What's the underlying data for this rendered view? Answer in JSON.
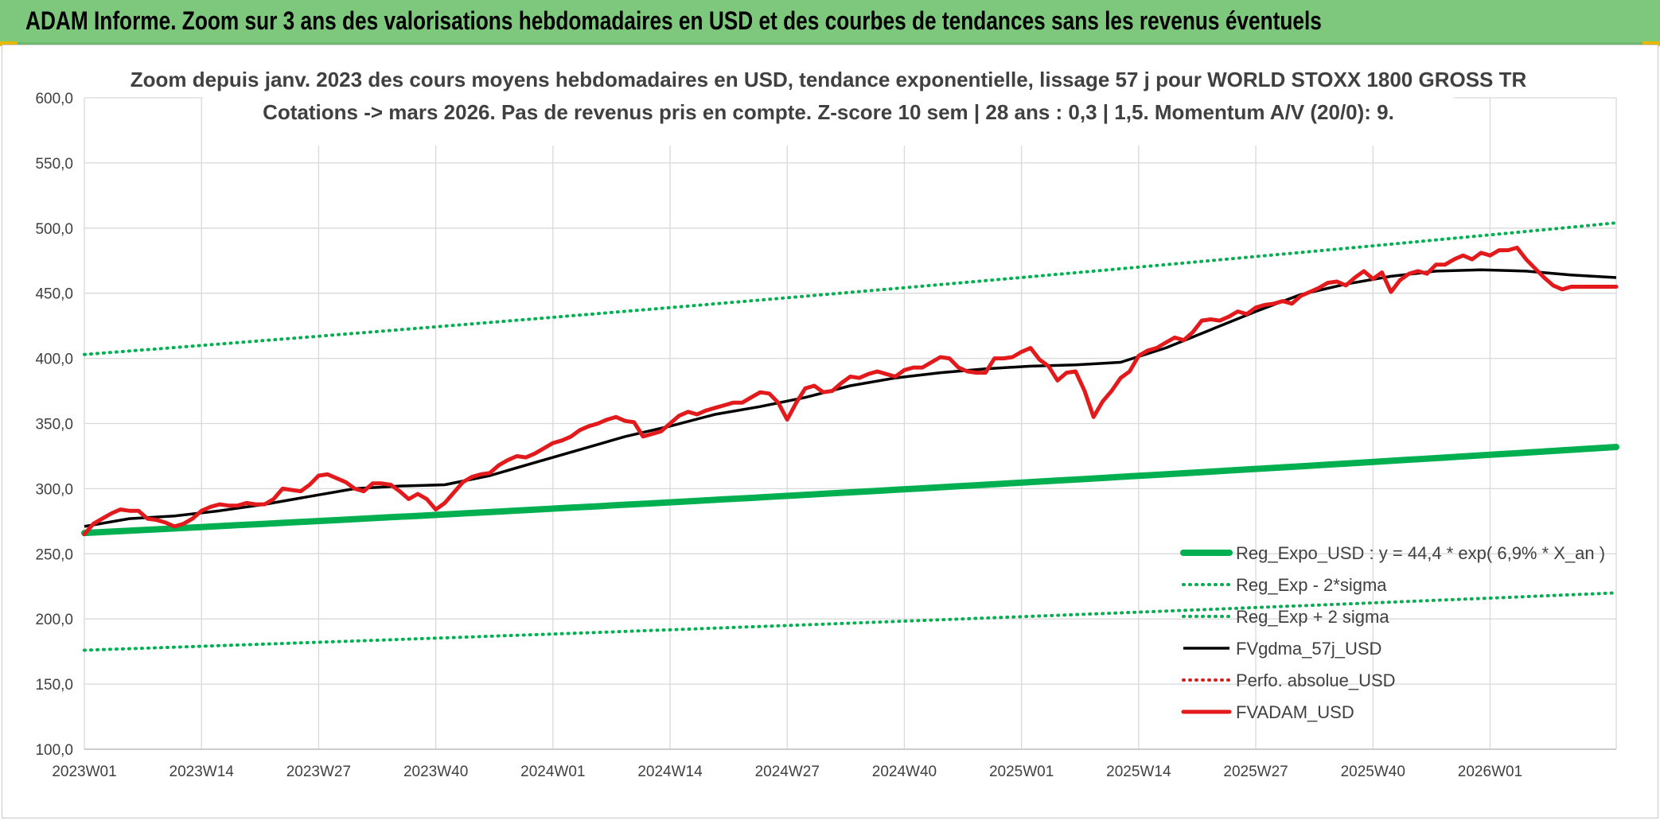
{
  "banner": {
    "title": "ADAM Informe. Zoom sur 3 ans des valorisations hebdomadaires en USD et des courbes de tendances sans les revenus éventuels"
  },
  "colors": {
    "banner_bg": "#7dc87d",
    "accent_gold": "#e6b800",
    "regression": "#00b050",
    "fvgdma": "#000000",
    "fvadam": "#e31a1c",
    "perf_absolue": "#e31a1c"
  },
  "chart_data": {
    "type": "line",
    "title": "Zoom depuis janv. 2023 des cours moyens hebdomadaires en USD, tendance exponentielle, lissage 57 j pour WORLD STOXX 1800 GROSS TR",
    "subtitle": "Cotations -> mars 2026. Pas de revenus pris en compte. Z-score 10 sem | 28 ans : 0,3 | 1,5. Momentum A/V (20/0): 9.",
    "xlabel": "",
    "ylabel": "",
    "ylim": [
      100,
      600
    ],
    "yticks": [
      "100,0",
      "150,0",
      "200,0",
      "250,0",
      "300,0",
      "350,0",
      "400,0",
      "450,0",
      "500,0",
      "550,0",
      "600,0"
    ],
    "xticks": [
      "2023W01",
      "2023W14",
      "2023W27",
      "2023W40",
      "2024W01",
      "2024W14",
      "2024W27",
      "2024W40",
      "2025W01",
      "2025W14",
      "2025W27",
      "2025W40",
      "2026W01"
    ],
    "weeks_total": 170,
    "grid": true,
    "legend_position": "bottom-right",
    "series": [
      {
        "name": "Reg_Expo_USD : y = 44,4 * exp( 6,9% *  X_an )",
        "style": "solid-thick",
        "color": "#00b050",
        "x": [
          0,
          170
        ],
        "values": [
          266,
          332
        ]
      },
      {
        "name": "Reg_Exp - 2*sigma",
        "style": "dotted",
        "color": "#00b050",
        "x": [
          0,
          170
        ],
        "values": [
          176,
          220
        ]
      },
      {
        "name": "Reg_Exp + 2 sigma",
        "style": "dotted",
        "color": "#00b050",
        "x": [
          0,
          170
        ],
        "values": [
          403,
          504
        ]
      },
      {
        "name": "FVgdma_57j_USD",
        "style": "solid",
        "color": "#000000",
        "x": [
          0,
          5,
          10,
          15,
          20,
          25,
          30,
          35,
          40,
          45,
          50,
          55,
          60,
          65,
          70,
          75,
          80,
          85,
          90,
          95,
          100,
          105,
          110,
          115,
          120,
          125,
          130,
          135,
          140,
          145,
          150,
          155,
          160,
          165,
          170
        ],
        "values": [
          271,
          277,
          279,
          283,
          288,
          294,
          300,
          302,
          303,
          310,
          320,
          330,
          340,
          348,
          357,
          363,
          370,
          379,
          385,
          389,
          392,
          394,
          395,
          397,
          408,
          422,
          436,
          449,
          457,
          463,
          467,
          468,
          467,
          464,
          462
        ]
      },
      {
        "name": "Perfo. absolue_USD",
        "style": "dotted",
        "color": "#e31a1c",
        "x": [],
        "values": []
      },
      {
        "name": "FVADAM_USD",
        "style": "solid",
        "color": "#e31a1c",
        "x": [
          0,
          1,
          2,
          3,
          4,
          5,
          6,
          7,
          8,
          9,
          10,
          11,
          12,
          13,
          14,
          15,
          16,
          17,
          18,
          19,
          20,
          21,
          22,
          23,
          24,
          25,
          26,
          27,
          28,
          29,
          30,
          31,
          32,
          33,
          34,
          35,
          36,
          37,
          38,
          39,
          40,
          41,
          42,
          43,
          44,
          45,
          46,
          47,
          48,
          49,
          50,
          51,
          52,
          53,
          54,
          55,
          56,
          57,
          58,
          59,
          60,
          61,
          62,
          63,
          64,
          65,
          66,
          67,
          68,
          69,
          70,
          71,
          72,
          73,
          74,
          75,
          76,
          77,
          78,
          79,
          80,
          81,
          82,
          83,
          84,
          85,
          86,
          87,
          88,
          89,
          90,
          91,
          92,
          93,
          94,
          95,
          96,
          97,
          98,
          99,
          100,
          101,
          102,
          103,
          104,
          105,
          106,
          107,
          108,
          109,
          110,
          111,
          112,
          113,
          114,
          115,
          116,
          117,
          118,
          119,
          120,
          121,
          122,
          123,
          124,
          125,
          126,
          127,
          128,
          129,
          130,
          131,
          132,
          133,
          134,
          135,
          136,
          137,
          138,
          139,
          140,
          141,
          142,
          143,
          144,
          145,
          146,
          147,
          148,
          149,
          150,
          151,
          152,
          153,
          154,
          155,
          156,
          157,
          158,
          159,
          160,
          161,
          162,
          163,
          164,
          165,
          166,
          167,
          168,
          169,
          170
        ],
        "values": [
          265,
          273,
          277,
          281,
          284,
          283,
          283,
          277,
          276,
          274,
          271,
          273,
          277,
          283,
          286,
          288,
          287,
          287,
          289,
          288,
          288,
          292,
          300,
          299,
          298,
          303,
          310,
          311,
          308,
          305,
          300,
          298,
          304,
          304,
          303,
          298,
          292,
          296,
          292,
          284,
          289,
          297,
          305,
          309,
          311,
          312,
          318,
          322,
          325,
          324,
          327,
          331,
          335,
          337,
          340,
          345,
          348,
          350,
          353,
          355,
          352,
          351,
          340,
          342,
          344,
          350,
          356,
          359,
          357,
          360,
          362,
          364,
          366,
          366,
          370,
          374,
          373,
          366,
          353,
          366,
          377,
          379,
          374,
          375,
          381,
          386,
          385,
          388,
          390,
          388,
          386,
          391,
          393,
          393,
          397,
          401,
          400,
          393,
          390,
          389,
          389,
          400,
          400,
          401,
          405,
          408,
          399,
          394,
          383,
          389,
          390,
          375,
          355,
          367,
          375,
          385,
          390,
          402,
          406,
          408,
          412,
          416,
          414,
          420,
          429,
          430,
          429,
          432,
          436,
          434,
          439,
          441,
          442,
          444,
          442,
          448,
          451,
          454,
          458,
          459,
          456,
          462,
          467,
          461,
          466,
          451,
          460,
          465,
          467,
          465,
          472,
          472,
          476,
          479,
          476,
          481,
          479,
          483,
          483,
          485,
          476,
          469,
          462,
          456,
          453,
          455,
          455,
          455,
          455,
          455,
          455
        ]
      }
    ]
  }
}
